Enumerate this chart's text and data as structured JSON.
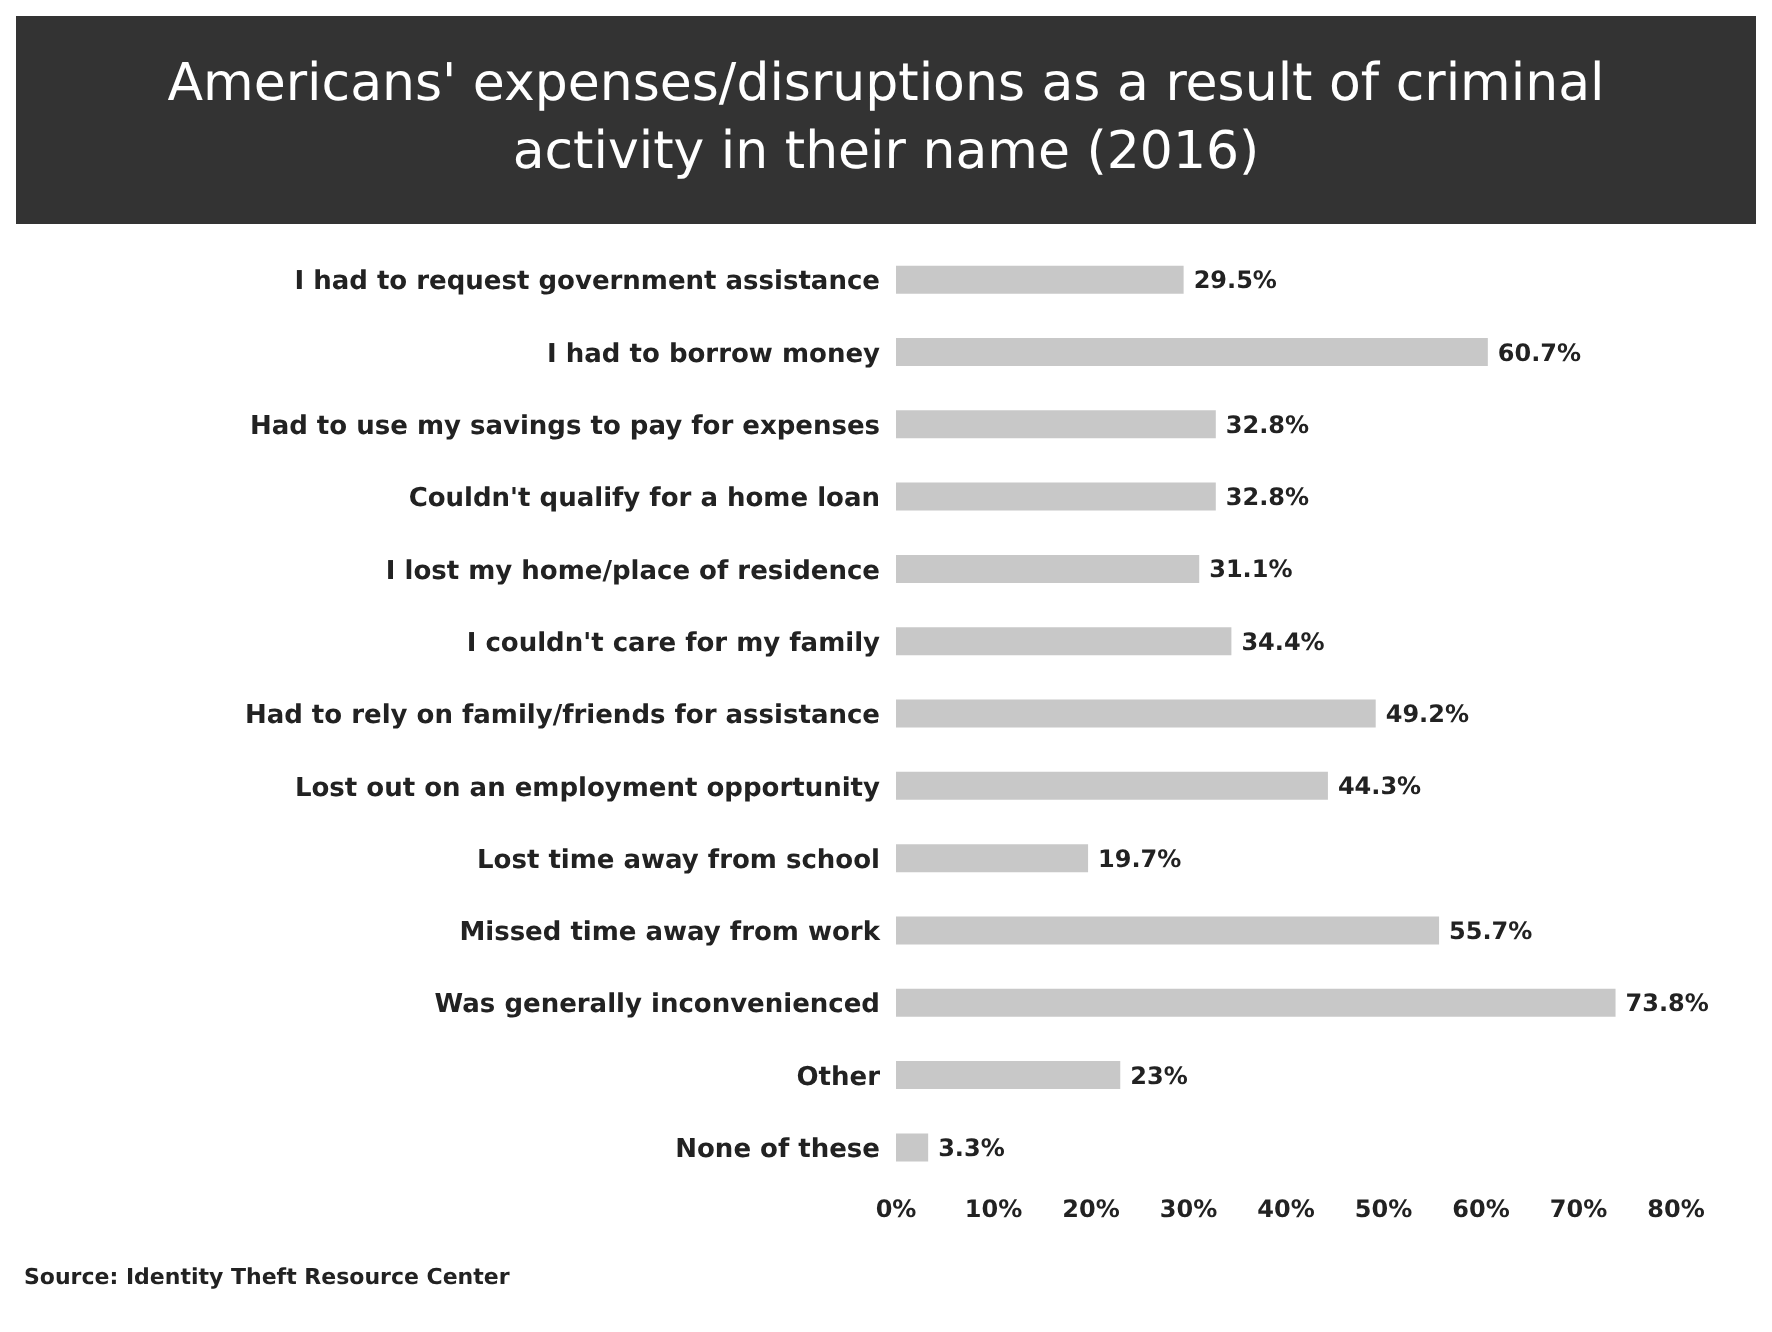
{
  "chart_data": {
    "type": "bar",
    "orientation": "horizontal",
    "title": "Americans' expenses/disruptions as a result of criminal activity in their name (2016)",
    "categories": [
      "I had to request government assistance",
      "I had to borrow money",
      "Had to use my savings to pay for expenses",
      "Couldn't qualify for a home loan",
      "I lost my home/place of residence",
      "I couldn't care for my family",
      "Had to rely on family/friends for assistance",
      "Lost out on an employment opportunity",
      "Lost time away from school",
      "Missed time away from work",
      "Was generally inconvenienced",
      "Other",
      "None of these"
    ],
    "values": [
      29.5,
      60.7,
      32.8,
      32.8,
      31.1,
      34.4,
      49.2,
      44.3,
      19.7,
      55.7,
      73.8,
      23,
      3.3
    ],
    "value_labels": [
      "29.5%",
      "60.7%",
      "32.8%",
      "32.8%",
      "31.1%",
      "34.4%",
      "49.2%",
      "44.3%",
      "19.7%",
      "55.7%",
      "73.8%",
      "23%",
      "3.3%"
    ],
    "color": "#c8c8c8",
    "xlim": [
      0,
      80
    ],
    "xticks": [
      {
        "value": 0,
        "label": "0%"
      },
      {
        "value": 10,
        "label": "10%"
      },
      {
        "value": 20,
        "label": "20%"
      },
      {
        "value": 30,
        "label": "30%"
      },
      {
        "value": 40,
        "label": "40%"
      },
      {
        "value": 50,
        "label": "50%"
      },
      {
        "value": 60,
        "label": "60%"
      },
      {
        "value": 70,
        "label": "70%"
      },
      {
        "value": 80,
        "label": "80%"
      }
    ],
    "annotations": [
      "Source: Identity Theft Resource Center"
    ]
  }
}
